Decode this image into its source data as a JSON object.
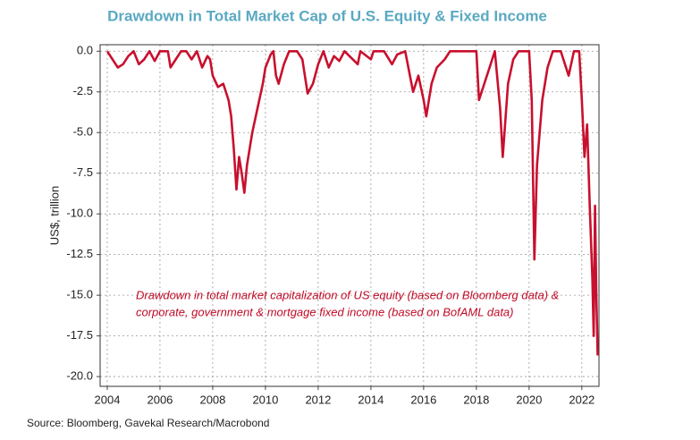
{
  "chart_data": {
    "type": "line",
    "title": "Drawdown  in Total Market Cap of U.S. Equity & Fixed Income",
    "y_label": "US$, trillion",
    "annotation": [
      "Drawdown in total market capitalization of US equity (based on Bloomberg data) &",
      "corporate, government & mortgage fixed income (based on BofAML data)"
    ],
    "source": "Source: Bloomberg, Gavekal Research/Macrobond",
    "xlim": [
      2003.73,
      2022.65
    ],
    "xticks": [
      2004,
      2006,
      2008,
      2010,
      2012,
      2014,
      2016,
      2018,
      2020,
      2022
    ],
    "ylim": [
      -20.6,
      0.4
    ],
    "yticks": [
      {
        "value": 0,
        "label": "0.0"
      },
      -2.5,
      {
        "value": -5,
        "label": "-5.0"
      },
      -7.5,
      {
        "value": -10,
        "label": "-10.0"
      },
      -12.5,
      {
        "value": -15,
        "label": "-15.0"
      },
      -17.5,
      {
        "value": -20,
        "label": "-20.0"
      }
    ],
    "grid": true,
    "series": [
      {
        "name": "Drawdown",
        "color": "#c8102e",
        "x": [
          2004.0,
          2004.2,
          2004.4,
          2004.6,
          2004.8,
          2005.0,
          2005.2,
          2005.4,
          2005.6,
          2005.8,
          2006.0,
          2006.3,
          2006.4,
          2006.6,
          2006.8,
          2007.0,
          2007.2,
          2007.4,
          2007.6,
          2007.8,
          2007.9,
          2008.0,
          2008.2,
          2008.4,
          2008.6,
          2008.7,
          2008.8,
          2008.9,
          2009.0,
          2009.1,
          2009.2,
          2009.3,
          2009.4,
          2009.5,
          2009.7,
          2009.9,
          2010.0,
          2010.2,
          2010.3,
          2010.4,
          2010.5,
          2010.7,
          2010.9,
          2011.2,
          2011.4,
          2011.6,
          2011.8,
          2012.0,
          2012.2,
          2012.4,
          2012.6,
          2012.8,
          2013.0,
          2013.5,
          2013.6,
          2014.0,
          2014.1,
          2014.5,
          2014.8,
          2015.0,
          2015.3,
          2015.6,
          2015.8,
          2016.0,
          2016.1,
          2016.3,
          2016.5,
          2016.8,
          2017.0,
          2017.5,
          2018.0,
          2018.1,
          2018.3,
          2018.5,
          2018.7,
          2018.9,
          2019.0,
          2019.2,
          2019.4,
          2019.6,
          2020.0,
          2020.1,
          2020.2,
          2020.3,
          2020.5,
          2020.7,
          2020.9,
          2021.2,
          2021.5,
          2021.7,
          2021.9,
          2022.0,
          2022.1,
          2022.2,
          2022.3,
          2022.4,
          2022.45,
          2022.5,
          2022.55,
          2022.6
        ],
        "values": [
          0,
          -0.5,
          -1.0,
          -0.8,
          -0.3,
          0,
          -0.8,
          -0.5,
          0,
          -0.6,
          0,
          0,
          -1.0,
          -0.5,
          0,
          0,
          -0.5,
          0,
          -1.0,
          -0.3,
          -0.5,
          -1.5,
          -2.2,
          -2.0,
          -3.0,
          -4.0,
          -6.0,
          -8.5,
          -6.5,
          -7.5,
          -8.7,
          -7.0,
          -6.0,
          -5.0,
          -3.5,
          -2.0,
          -1.0,
          -0.2,
          0,
          -1.5,
          -2.0,
          -0.8,
          0,
          0,
          -0.5,
          -2.6,
          -2.0,
          -0.8,
          0,
          -1.0,
          -0.3,
          -0.6,
          0,
          -0.8,
          0,
          -0.5,
          0,
          0,
          -0.8,
          -0.2,
          0,
          -2.5,
          -1.5,
          -3.0,
          -4.0,
          -2.0,
          -1.0,
          -0.5,
          0,
          0,
          0,
          -3.0,
          -2.0,
          -1.0,
          0,
          -3.5,
          -6.5,
          -2.0,
          -0.5,
          0,
          0,
          -3.0,
          -12.8,
          -7.0,
          -3.0,
          -1.0,
          0,
          0,
          -1.5,
          0,
          0,
          -3.0,
          -6.5,
          -4.5,
          -9.5,
          -14.0,
          -17.5,
          -9.5,
          -15.0,
          -18.7
        ]
      }
    ]
  }
}
